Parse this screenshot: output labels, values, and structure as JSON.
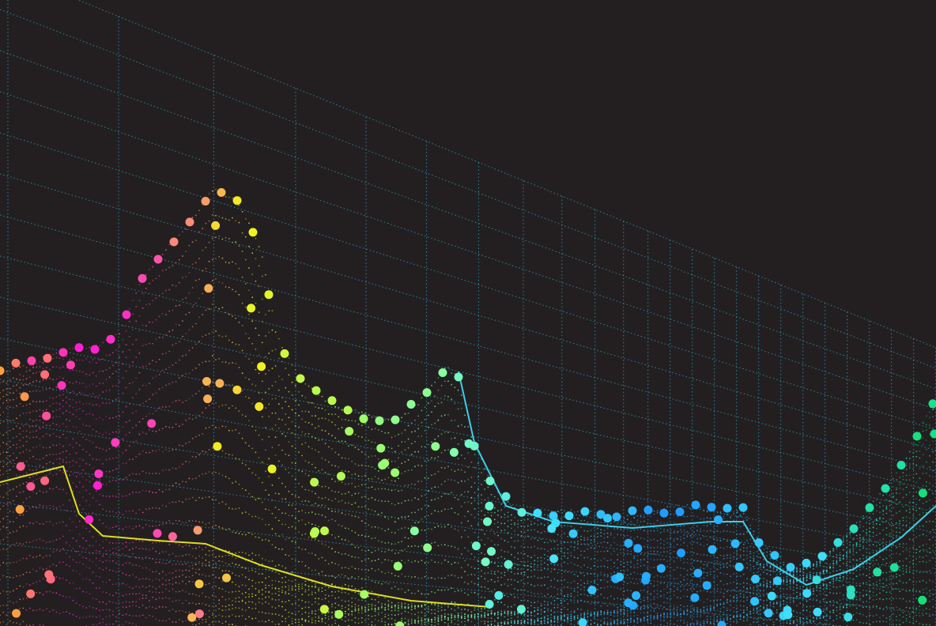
{
  "scene": {
    "background": "#231f20",
    "grid_color": "#2aa7c9",
    "palette": {
      "magenta": "#ff1ad9",
      "pink": "#ff5fa2",
      "orange": "#ffa040",
      "yellow": "#f2f21c",
      "lime": "#9dff6a",
      "mint": "#7dffb8",
      "cyan": "#3fe0ff",
      "blue": "#1e9bff",
      "green": "#14e07a"
    }
  }
}
